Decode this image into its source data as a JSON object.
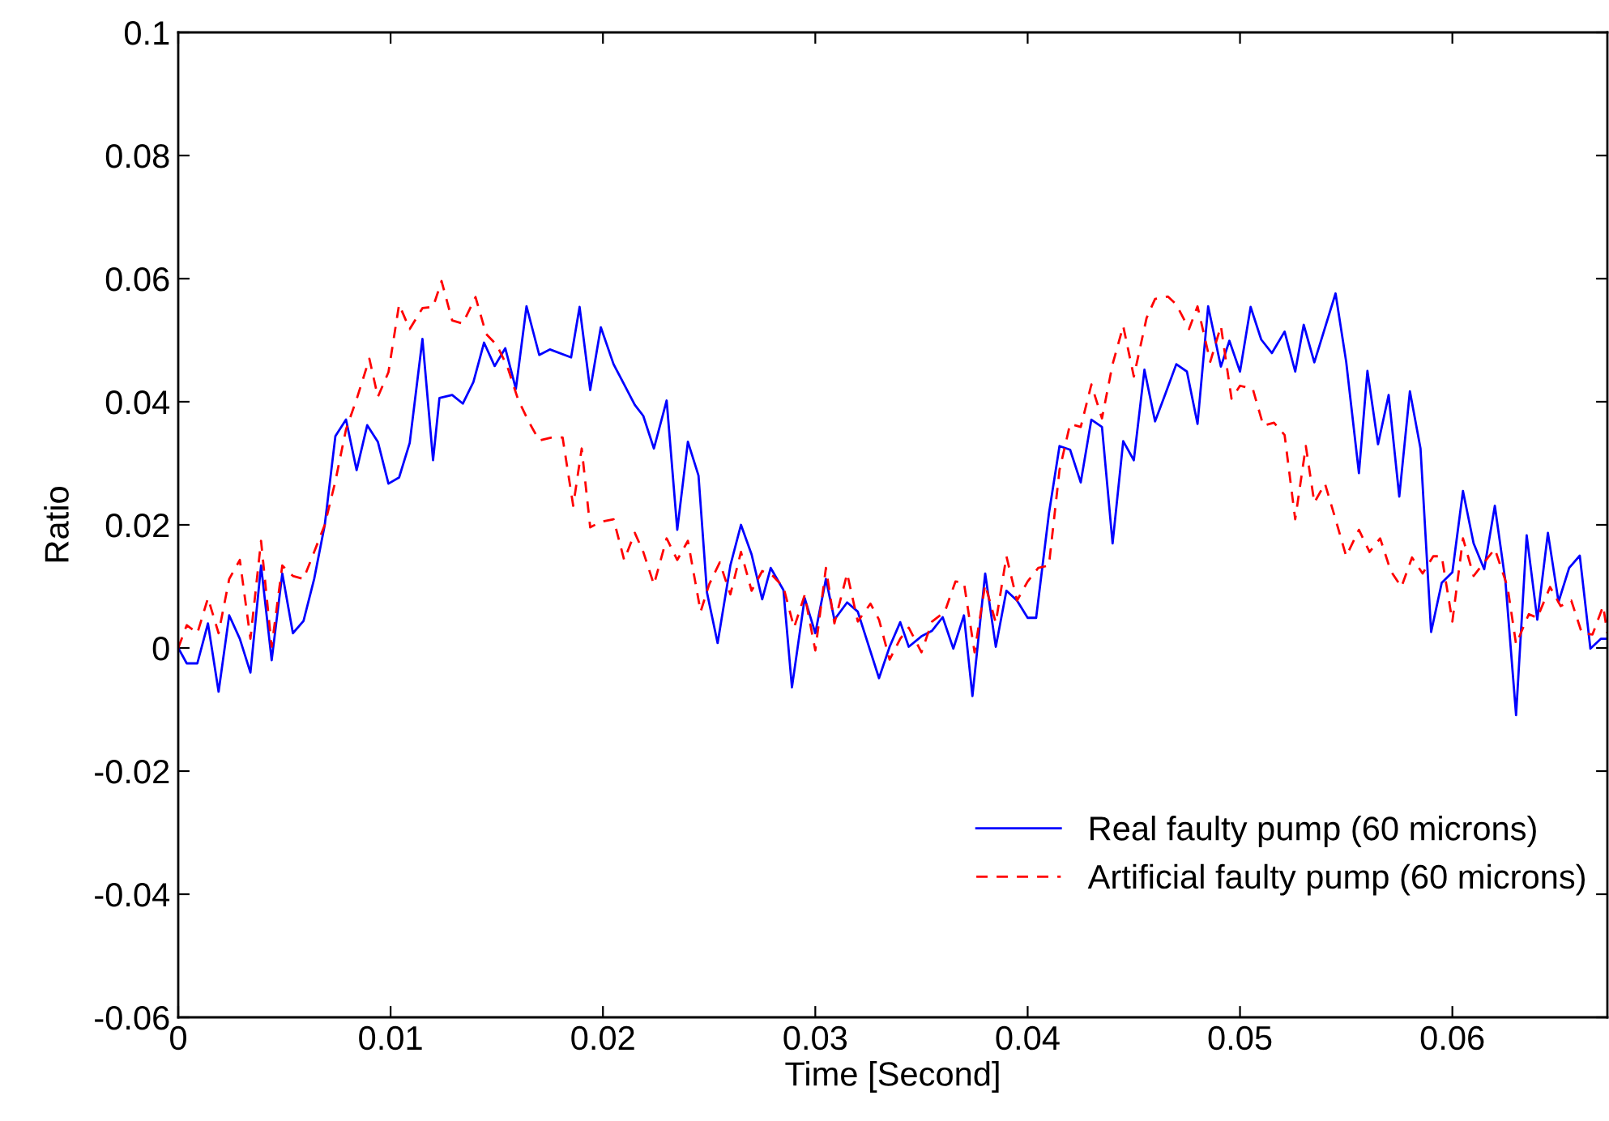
{
  "chart_data": {
    "type": "line",
    "xlabel": "Time [Second]",
    "ylabel": "Ratio",
    "xlim": [
      0,
      0.0673
    ],
    "ylim": [
      -0.06,
      0.1
    ],
    "xticks": [
      0,
      0.01,
      0.02,
      0.03,
      0.04,
      0.05,
      0.06
    ],
    "yticks": [
      -0.06,
      -0.04,
      -0.02,
      0,
      0.02,
      0.04,
      0.06,
      0.08,
      0.1
    ],
    "grid": false,
    "legend": "bottom right",
    "series": [
      {
        "name": "Real faulty pump (60 microns)",
        "color": "#0000ff",
        "line_style": "solid",
        "x": [
          0,
          0.0004,
          0.0009,
          0.0014,
          0.0019,
          0.0024,
          0.0029,
          0.0034,
          0.0039,
          0.0044,
          0.0049,
          0.0054,
          0.0059,
          0.0064,
          0.0069,
          0.0074,
          0.0079,
          0.0084,
          0.0089,
          0.0094,
          0.0099,
          0.0104,
          0.0109,
          0.0115,
          0.012,
          0.0123,
          0.0129,
          0.0134,
          0.0139,
          0.0144,
          0.0149,
          0.0154,
          0.0159,
          0.0164,
          0.017,
          0.0175,
          0.0185,
          0.0189,
          0.0194,
          0.0199,
          0.0205,
          0.0215,
          0.0219,
          0.0224,
          0.023,
          0.0235,
          0.024,
          0.0245,
          0.0249,
          0.0254,
          0.026,
          0.0265,
          0.027,
          0.0275,
          0.0279,
          0.0285,
          0.0289,
          0.0295,
          0.03,
          0.0305,
          0.0309,
          0.0315,
          0.032,
          0.033,
          0.0335,
          0.034,
          0.0344,
          0.035,
          0.0355,
          0.036,
          0.0365,
          0.037,
          0.0374,
          0.038,
          0.0385,
          0.039,
          0.0395,
          0.04,
          0.0404,
          0.041,
          0.0415,
          0.042,
          0.0425,
          0.043,
          0.0435,
          0.044,
          0.0445,
          0.045,
          0.0455,
          0.046,
          0.0465,
          0.047,
          0.0475,
          0.048,
          0.0485,
          0.0491,
          0.0495,
          0.05,
          0.0505,
          0.051,
          0.0515,
          0.0521,
          0.0526,
          0.053,
          0.0535,
          0.0545,
          0.055,
          0.0556,
          0.056,
          0.0565,
          0.057,
          0.0575,
          0.058,
          0.0585,
          0.059,
          0.0595,
          0.06,
          0.0605,
          0.061,
          0.0615,
          0.062,
          0.0625,
          0.063,
          0.0635,
          0.064,
          0.0645,
          0.065,
          0.0655,
          0.066,
          0.0665,
          0.067,
          0.0673
        ],
        "values": [
          0,
          -0.0025,
          -0.0025,
          0.004,
          -0.0071,
          0.0053,
          0.0015,
          -0.004,
          0.0134,
          -0.002,
          0.0121,
          0.0024,
          0.0044,
          0.0112,
          0.02,
          0.0344,
          0.0371,
          0.0289,
          0.0362,
          0.0335,
          0.0267,
          0.0277,
          0.0333,
          0.0502,
          0.0305,
          0.0406,
          0.0411,
          0.0397,
          0.0432,
          0.0496,
          0.0458,
          0.0487,
          0.0421,
          0.0555,
          0.0476,
          0.0485,
          0.0472,
          0.0554,
          0.0419,
          0.0521,
          0.0461,
          0.0395,
          0.0377,
          0.0324,
          0.0402,
          0.0192,
          0.0335,
          0.028,
          0.009,
          0.0008,
          0.0134,
          0.02,
          0.0152,
          0.0079,
          0.013,
          0.0094,
          -0.0064,
          0.0081,
          0.0024,
          0.0112,
          0.0046,
          0.0074,
          0.0059,
          -0.0049,
          0.0002,
          0.0042,
          0.0002,
          0.0019,
          0.0028,
          0.005,
          -0.0001,
          0.0053,
          -0.0078,
          0.0121,
          0.0002,
          0.0093,
          0.0077,
          0.0049,
          0.0049,
          0.0218,
          0.0328,
          0.0322,
          0.0269,
          0.0371,
          0.0359,
          0.017,
          0.0336,
          0.0305,
          0.0452,
          0.0368,
          0.0414,
          0.0461,
          0.0449,
          0.0364,
          0.0555,
          0.0457,
          0.0499,
          0.0449,
          0.0554,
          0.0501,
          0.0479,
          0.0514,
          0.0449,
          0.0525,
          0.0464,
          0.0576,
          0.0465,
          0.0284,
          0.045,
          0.0331,
          0.0411,
          0.0246,
          0.0417,
          0.0324,
          0.0026,
          0.0106,
          0.0123,
          0.0255,
          0.017,
          0.0128,
          0.0231,
          0.0108,
          -0.0109,
          0.0183,
          0.0046,
          0.0187,
          0.0075,
          0.013,
          0.015,
          -0.0001,
          0.0015,
          0.0015
        ]
      },
      {
        "name": "Artificial faulty pump (60 microns)",
        "color": "#ff0000",
        "line_style": "dashed",
        "x": [
          0,
          0.0004,
          0.0009,
          0.0014,
          0.0019,
          0.0024,
          0.0029,
          0.0034,
          0.0039,
          0.0044,
          0.0049,
          0.0054,
          0.0059,
          0.0064,
          0.0069,
          0.0074,
          0.0079,
          0.0084,
          0.009,
          0.0094,
          0.0099,
          0.0104,
          0.0109,
          0.0115,
          0.012,
          0.0124,
          0.0129,
          0.0134,
          0.014,
          0.0145,
          0.015,
          0.0155,
          0.016,
          0.0165,
          0.017,
          0.0176,
          0.0181,
          0.0186,
          0.019,
          0.0194,
          0.0199,
          0.0205,
          0.021,
          0.0215,
          0.0219,
          0.0224,
          0.023,
          0.0235,
          0.024,
          0.0246,
          0.025,
          0.0255,
          0.026,
          0.0265,
          0.027,
          0.0275,
          0.028,
          0.0285,
          0.029,
          0.0295,
          0.03,
          0.0305,
          0.0309,
          0.0315,
          0.032,
          0.0326,
          0.033,
          0.0335,
          0.034,
          0.0344,
          0.035,
          0.0355,
          0.0361,
          0.0366,
          0.037,
          0.0375,
          0.038,
          0.0385,
          0.039,
          0.0395,
          0.04,
          0.0405,
          0.041,
          0.0415,
          0.042,
          0.0425,
          0.043,
          0.0435,
          0.044,
          0.0445,
          0.045,
          0.0456,
          0.046,
          0.0466,
          0.047,
          0.0476,
          0.048,
          0.0486,
          0.0491,
          0.0496,
          0.05,
          0.0506,
          0.0511,
          0.0516,
          0.0521,
          0.0526,
          0.0531,
          0.0535,
          0.054,
          0.0545,
          0.055,
          0.0556,
          0.0561,
          0.0566,
          0.0571,
          0.0576,
          0.0581,
          0.0586,
          0.0591,
          0.0595,
          0.06,
          0.0605,
          0.061,
          0.0615,
          0.062,
          0.0626,
          0.063,
          0.0636,
          0.064,
          0.0646,
          0.0651,
          0.0656,
          0.0661,
          0.0666,
          0.0671,
          0.0673
        ],
        "values": [
          0,
          0.0037,
          0.0024,
          0.0081,
          0.0024,
          0.0112,
          0.0143,
          0.0015,
          0.0174,
          0.0002,
          0.0134,
          0.0117,
          0.0112,
          0.0156,
          0.02,
          0.0271,
          0.0355,
          0.0404,
          0.047,
          0.0408,
          0.0448,
          0.0558,
          0.0518,
          0.0552,
          0.0554,
          0.0596,
          0.0532,
          0.0527,
          0.057,
          0.051,
          0.0492,
          0.0457,
          0.0404,
          0.0368,
          0.0337,
          0.0342,
          0.0342,
          0.0231,
          0.0324,
          0.0196,
          0.0205,
          0.0209,
          0.0143,
          0.0187,
          0.0156,
          0.0103,
          0.0178,
          0.0143,
          0.0174,
          0.0059,
          0.0103,
          0.0139,
          0.0087,
          0.0156,
          0.0093,
          0.0125,
          0.0117,
          0.0099,
          0.0033,
          0.0086,
          -0.0004,
          0.013,
          0.004,
          0.0121,
          0.0043,
          0.0072,
          0.0046,
          -0.0019,
          0.0015,
          0.0033,
          -0.0007,
          0.0043,
          0.0059,
          0.0108,
          0.0106,
          -0.0007,
          0.0103,
          0.0041,
          0.0149,
          0.0077,
          0.0108,
          0.013,
          0.0134,
          0.0289,
          0.0364,
          0.0359,
          0.0428,
          0.0373,
          0.0461,
          0.0523,
          0.0441,
          0.0536,
          0.0567,
          0.0571,
          0.0558,
          0.0518,
          0.0555,
          0.0465,
          0.0523,
          0.0405,
          0.0426,
          0.0421,
          0.0361,
          0.0366,
          0.0346,
          0.0209,
          0.0328,
          0.0236,
          0.0267,
          0.0209,
          0.0149,
          0.0192,
          0.0156,
          0.0178,
          0.0125,
          0.0099,
          0.0147,
          0.0121,
          0.0149,
          0.0149,
          0.0043,
          0.0178,
          0.0117,
          0.0139,
          0.0161,
          0.0099,
          0.0006,
          0.0055,
          0.0049,
          0.0099,
          0.0068,
          0.0077,
          0.0024,
          0.0022,
          0.0068,
          0.0024
        ]
      }
    ]
  }
}
